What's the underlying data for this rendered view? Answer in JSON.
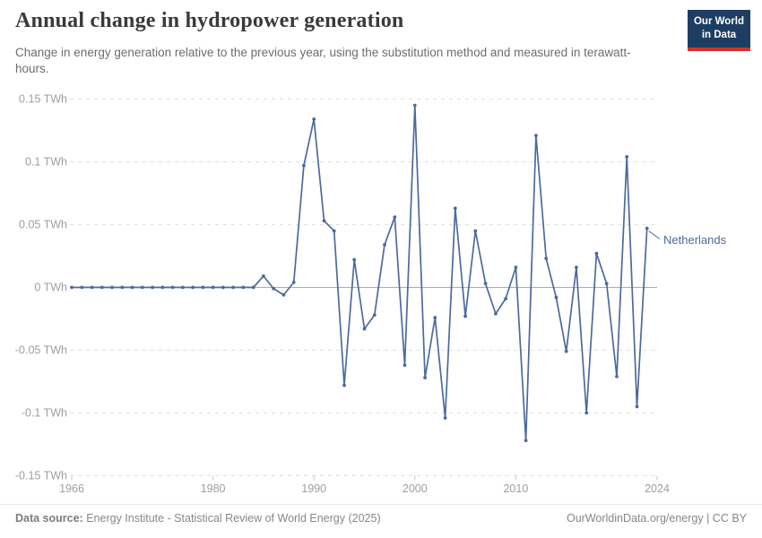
{
  "header": {
    "title": "Annual change in hydropower generation",
    "subtitle": "Change in energy generation relative to the previous year, using the substitution method and measured in terawatt-hours."
  },
  "logo": {
    "line1": "Our World",
    "line2": "in Data"
  },
  "entity_label": "Netherlands",
  "chart_data": {
    "type": "line",
    "title": "Annual change in hydropower generation",
    "unit": "TWh",
    "xlabel": "",
    "ylabel": "",
    "xlim": [
      1966,
      2024
    ],
    "ylim": [
      -0.15,
      0.15
    ],
    "grid": "horizontal-dashed",
    "legend_position": "end-of-line-label",
    "x_ticks": [
      {
        "value": 1966,
        "label": "1966"
      },
      {
        "value": 1980,
        "label": "1980"
      },
      {
        "value": 1990,
        "label": "1990"
      },
      {
        "value": 2000,
        "label": "2000"
      },
      {
        "value": 2010,
        "label": "2010"
      },
      {
        "value": 2024,
        "label": "2024"
      }
    ],
    "y_ticks": [
      {
        "value": 0.15,
        "label": "0.15 TWh"
      },
      {
        "value": 0.1,
        "label": "0.1 TWh"
      },
      {
        "value": 0.05,
        "label": "0.05 TWh"
      },
      {
        "value": 0,
        "label": "0 TWh"
      },
      {
        "value": -0.05,
        "label": "-0.05 TWh"
      },
      {
        "value": -0.1,
        "label": "-0.1 TWh"
      },
      {
        "value": -0.15,
        "label": "-0.15 TWh"
      }
    ],
    "series": [
      {
        "name": "Netherlands",
        "x": [
          1966,
          1967,
          1968,
          1969,
          1970,
          1971,
          1972,
          1973,
          1974,
          1975,
          1976,
          1977,
          1978,
          1979,
          1980,
          1981,
          1982,
          1983,
          1984,
          1985,
          1986,
          1987,
          1988,
          1989,
          1990,
          1991,
          1992,
          1993,
          1994,
          1995,
          1996,
          1997,
          1998,
          1999,
          2000,
          2001,
          2002,
          2003,
          2004,
          2005,
          2006,
          2007,
          2008,
          2009,
          2010,
          2011,
          2012,
          2013,
          2014,
          2015,
          2016,
          2017,
          2018,
          2019,
          2020,
          2021,
          2022,
          2023
        ],
        "values": [
          0,
          0,
          0,
          0,
          0,
          0,
          0,
          0,
          0,
          0,
          0,
          0,
          0,
          0,
          0,
          0,
          0,
          0,
          0,
          0.009,
          -0.001,
          -0.006,
          0.004,
          0.097,
          0.134,
          0.053,
          0.045,
          -0.078,
          0.022,
          -0.033,
          -0.022,
          0.034,
          0.056,
          -0.062,
          0.145,
          -0.072,
          -0.024,
          -0.104,
          0.063,
          -0.023,
          0.045,
          0.003,
          -0.021,
          -0.009,
          0.016,
          -0.122,
          0.121,
          0.023,
          -0.008,
          -0.051,
          0.016,
          -0.1,
          0.027,
          0.003,
          -0.071,
          0.104,
          -0.095,
          0.047
        ]
      }
    ]
  },
  "colors": {
    "line": "#4c6a9c",
    "gridline": "#e0e0e0",
    "zero_line": "#ababab",
    "axis_text": "#9e9e9e",
    "tick_mark": "#c9c9c9",
    "logo_bg": "#1d3d63",
    "logo_accent": "#d2342a"
  },
  "footer": {
    "source_label": "Data source:",
    "source_text": "Energy Institute - Statistical Review of World Energy (2025)",
    "link_text": "OurWorldinData.org/energy | CC BY"
  }
}
